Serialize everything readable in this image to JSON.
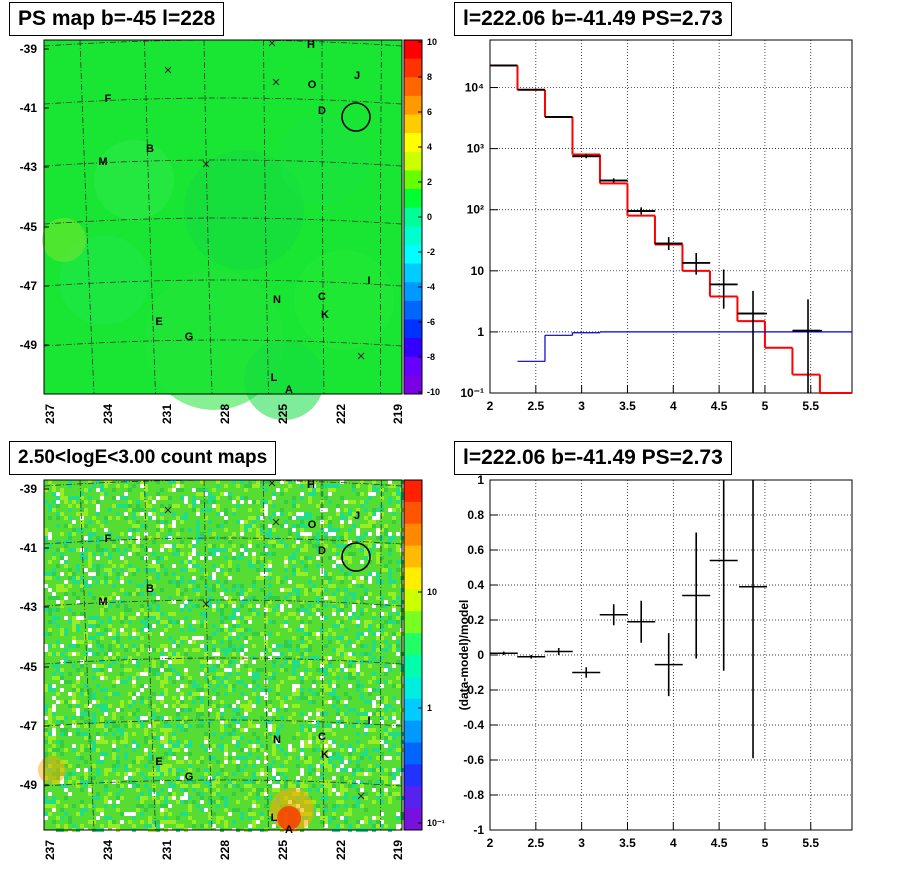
{
  "panels": {
    "ps_map": {
      "title": "PS map b=-45 l=228",
      "y_ticks": [
        "-39",
        "-41",
        "-43",
        "-45",
        "-47",
        "-49"
      ],
      "x_ticks": [
        "237",
        "234",
        "231",
        "228",
        "225",
        "222",
        "219"
      ],
      "colorbar_ticks": [
        "10",
        "8",
        "6",
        "4",
        "2",
        "0",
        "-2",
        "-4",
        "-6",
        "-8",
        "-10"
      ],
      "colorbar_colors": [
        "#ff0000",
        "#ff3300",
        "#ff6600",
        "#ff9900",
        "#ffcc00",
        "#ffff00",
        "#ccff00",
        "#66ff00",
        "#00ff33",
        "#00ff99",
        "#00ffcc",
        "#00ffff",
        "#00ccff",
        "#0099ff",
        "#0066ff",
        "#0033ff",
        "#3300ff",
        "#6600ff",
        "#7a00e6"
      ],
      "background_color": "#19e632"
    },
    "count_map": {
      "title": "2.50<logE<3.00 count maps",
      "y_ticks": [
        "-39",
        "-41",
        "-43",
        "-45",
        "-47",
        "-49"
      ],
      "x_ticks": [
        "237",
        "234",
        "231",
        "228",
        "225",
        "222",
        "219"
      ],
      "colorbar_ticks": [
        "10",
        "1",
        "10⁻¹"
      ],
      "background_color": "#55dd33"
    },
    "spectrum": {
      "title": "l=222.06 b=-41.49 PS=2.73"
    },
    "residual": {
      "title": "l=222.06 b=-41.49 PS=2.73"
    }
  },
  "map_labels": [
    "H",
    "J",
    "O",
    "D",
    "F",
    "B",
    "M",
    "I",
    "N",
    "C",
    "K",
    "E",
    "G",
    "L",
    "A"
  ],
  "chart_data": [
    {
      "type": "heatmap",
      "title": "PS map b=-45 l=228",
      "x_tick_labels": [
        "237",
        "234",
        "231",
        "228",
        "225",
        "222",
        "219"
      ],
      "y_tick_labels": [
        "-39",
        "-41",
        "-43",
        "-45",
        "-47",
        "-49"
      ],
      "color_scale": [
        -10,
        10
      ]
    },
    {
      "type": "line",
      "title": "l=222.06 b=-41.49 PS=2.73",
      "xlim": [
        2,
        5.95
      ],
      "ylim": [
        0.1,
        60000
      ],
      "yscale": "log",
      "x_tick_labels": [
        "2",
        "2.5",
        "3",
        "3.5",
        "4",
        "4.5",
        "5",
        "5.5"
      ],
      "y_tick_labels": [
        "10⁻¹",
        "1",
        "10",
        "10²",
        "10³",
        "10⁴"
      ],
      "series": [
        {
          "kind": "step",
          "color": "#ff0000",
          "edges": [
            2.0,
            2.3,
            2.6,
            2.9,
            3.2,
            3.5,
            3.8,
            4.1,
            4.4,
            4.7,
            5.0,
            5.3,
            5.6,
            5.95
          ],
          "values": [
            23000,
            9200,
            3300,
            800,
            270,
            80,
            27,
            10,
            3.8,
            1.5,
            0.55,
            0.2,
            0.07
          ]
        },
        {
          "kind": "step",
          "color": "#000000",
          "edges": [
            2.0,
            2.3,
            2.6,
            2.9,
            3.2,
            3.5,
            3.8,
            4.1,
            4.4,
            4.7,
            5.0,
            5.3,
            5.6,
            5.95
          ],
          "values": [
            23000,
            9200,
            3300,
            750,
            300,
            95,
            28,
            13.5,
            6,
            2,
            null,
            1.05,
            null
          ]
        },
        {
          "kind": "step",
          "color": "#0000cc",
          "edges": [
            2.3,
            2.6,
            2.9,
            3.2,
            5.95
          ],
          "values": [
            0.33,
            0.88,
            0.97,
            1.0
          ]
        }
      ],
      "points": [
        {
          "x": 3.05,
          "y": 750
        },
        {
          "x": 3.35,
          "y": 300
        },
        {
          "x": 3.65,
          "y": 95
        },
        {
          "x": 3.95,
          "y": 28
        },
        {
          "x": 4.25,
          "y": 13.5
        },
        {
          "x": 4.55,
          "y": 6
        },
        {
          "x": 4.87,
          "y": 2
        },
        {
          "x": 5.47,
          "y": 1.05
        }
      ]
    },
    {
      "type": "heatmap",
      "title": "2.50<logE<3.00 count maps",
      "x_tick_labels": [
        "237",
        "234",
        "231",
        "228",
        "225",
        "222",
        "219"
      ],
      "y_tick_labels": [
        "-39",
        "-41",
        "-43",
        "-45",
        "-47",
        "-49"
      ],
      "color_scale_log": true
    },
    {
      "type": "scatter",
      "title": "l=222.06 b=-41.49 PS=2.73",
      "ylabel": "(data-model)/model",
      "xlim": [
        2,
        5.95
      ],
      "ylim": [
        -1,
        1
      ],
      "x_tick_labels": [
        "2",
        "2.5",
        "3",
        "3.5",
        "4",
        "4.5",
        "5",
        "5.5"
      ],
      "y_tick_labels": [
        "-1",
        "-0.8",
        "-0.6",
        "-0.4",
        "-0.2",
        "0",
        "0.2",
        "0.4",
        "0.6",
        "0.8",
        "1"
      ],
      "points": [
        {
          "x": 2.15,
          "y": 0.01,
          "ey": 0.01
        },
        {
          "x": 2.45,
          "y": -0.01,
          "ey": 0.01
        },
        {
          "x": 2.75,
          "y": 0.02,
          "ey": 0.02
        },
        {
          "x": 3.05,
          "y": -0.1,
          "ey": 0.03
        },
        {
          "x": 3.35,
          "y": 0.23,
          "ey": 0.06
        },
        {
          "x": 3.65,
          "y": 0.19,
          "ey": 0.12
        },
        {
          "x": 3.95,
          "y": -0.055,
          "ey": 0.18
        },
        {
          "x": 4.25,
          "y": 0.34,
          "ey": 0.36
        },
        {
          "x": 4.55,
          "y": 0.54,
          "ey": 0.63
        },
        {
          "x": 4.87,
          "y": 0.39,
          "ey": 0.98
        }
      ]
    }
  ]
}
